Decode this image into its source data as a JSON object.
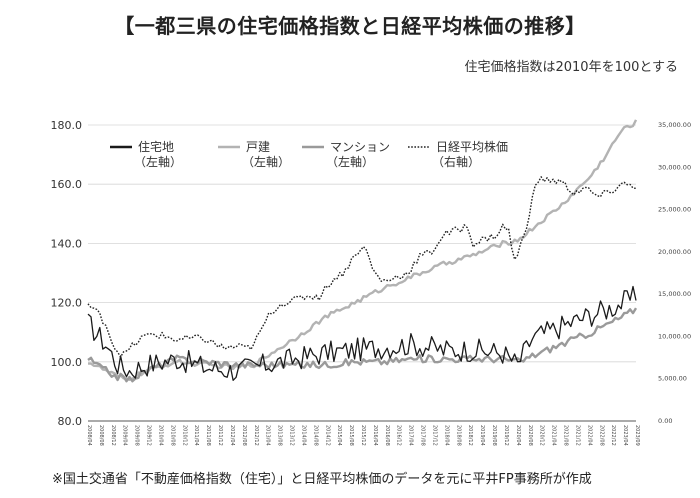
{
  "header": {
    "title": "【一都三県の住宅価格指数と日経平均株価の推移】",
    "subtitle": "住宅価格指数は2010年を100とする"
  },
  "footnote": "※国土交通省「不動産価格指数（住宅）」と日経平均株価のデータを元に平井FP事務所が作成",
  "chart_data": {
    "type": "line",
    "x_start": "2008/04",
    "x_end": "2023/09",
    "x_frequency": "monthly",
    "x_tick_labels": [
      "2008/04",
      "2008/08",
      "2008/12",
      "2009/04",
      "2009/08",
      "2009/12",
      "2010/04",
      "2010/08",
      "2010/12",
      "2011/04",
      "2011/08",
      "2011/12",
      "2012/04",
      "2012/08",
      "2012/12",
      "2013/04",
      "2013/08",
      "2013/12",
      "2014/04",
      "2014/08",
      "2014/12",
      "2015/04",
      "2015/08",
      "2015/12",
      "2016/04",
      "2016/08",
      "2016/12",
      "2017/04",
      "2017/08",
      "2017/12",
      "2018/04",
      "2018/08",
      "2018/12",
      "2019/04",
      "2019/08",
      "2019/12",
      "2020/04",
      "2020/08",
      "2020/12",
      "2021/04",
      "2021/08",
      "2021/12",
      "2022/04",
      "2022/08",
      "2022/12",
      "2023/04",
      "2023/09"
    ],
    "y_left": {
      "ticks": [
        "80.0",
        "100.0",
        "120.0",
        "140.0",
        "160.0",
        "180.0"
      ],
      "ylim": [
        80,
        180
      ]
    },
    "y_right": {
      "ticks": [
        "0.00",
        "5,000.00",
        "10,000.00",
        "15,000.00",
        "20,000.00",
        "25,000.00",
        "30,000.00",
        "35,000.00"
      ],
      "ylim": [
        0,
        35000
      ]
    },
    "grid": true,
    "legend_position": "top-left",
    "series": [
      {
        "name": "住宅地",
        "sub": "（左軸）",
        "axis": "left",
        "color": "#1a1a1a",
        "style": "solid",
        "anchors": [
          [
            0,
            113
          ],
          [
            6,
            106
          ],
          [
            10,
            99
          ],
          [
            14,
            97
          ],
          [
            20,
            99
          ],
          [
            30,
            101
          ],
          [
            40,
            98
          ],
          [
            50,
            97
          ],
          [
            60,
            99
          ],
          [
            70,
            101
          ],
          [
            80,
            103
          ],
          [
            90,
            104
          ],
          [
            100,
            105
          ],
          [
            110,
            106
          ],
          [
            120,
            104
          ],
          [
            130,
            104
          ],
          [
            140,
            103
          ],
          [
            145,
            99
          ],
          [
            150,
            108
          ],
          [
            160,
            112
          ],
          [
            170,
            116
          ],
          [
            176,
            118
          ],
          [
            185,
            122
          ]
        ],
        "noise": 4.0
      },
      {
        "name": "戸建",
        "sub": "（左軸）",
        "axis": "left",
        "color": "#b3b3b3",
        "style": "solid",
        "anchors": [
          [
            0,
            100
          ],
          [
            6,
            97
          ],
          [
            10,
            95
          ],
          [
            13,
            94
          ],
          [
            20,
            97
          ],
          [
            30,
            100
          ],
          [
            40,
            99
          ],
          [
            50,
            98
          ],
          [
            56,
            99
          ],
          [
            62,
            103
          ],
          [
            70,
            108
          ],
          [
            80,
            115
          ],
          [
            90,
            120
          ],
          [
            100,
            125
          ],
          [
            110,
            129
          ],
          [
            120,
            133
          ],
          [
            130,
            136
          ],
          [
            140,
            140
          ],
          [
            145,
            141
          ],
          [
            150,
            145
          ],
          [
            160,
            153
          ],
          [
            170,
            163
          ],
          [
            175,
            170
          ],
          [
            180,
            178
          ],
          [
            185,
            181
          ]
        ],
        "noise": 0.8
      },
      {
        "name": "マンション",
        "sub": "（左軸）",
        "axis": "left",
        "color": "#9a9a9a",
        "style": "solid",
        "anchors": [
          [
            0,
            101
          ],
          [
            6,
            97
          ],
          [
            10,
            95
          ],
          [
            14,
            94
          ],
          [
            22,
            98
          ],
          [
            30,
            101
          ],
          [
            40,
            100
          ],
          [
            50,
            99
          ],
          [
            60,
            99
          ],
          [
            70,
            99
          ],
          [
            80,
            99
          ],
          [
            90,
            100
          ],
          [
            100,
            100
          ],
          [
            110,
            101
          ],
          [
            120,
            101
          ],
          [
            130,
            101
          ],
          [
            140,
            101
          ],
          [
            146,
            100
          ],
          [
            150,
            102
          ],
          [
            160,
            106
          ],
          [
            170,
            110
          ],
          [
            180,
            115
          ],
          [
            185,
            118
          ]
        ],
        "noise": 1.2
      },
      {
        "name": "日経平均株価",
        "sub": "（右軸）",
        "axis": "right",
        "color": "#222222",
        "style": "dotted",
        "anchors": [
          [
            0,
            13800
          ],
          [
            4,
            12500
          ],
          [
            6,
            11500
          ],
          [
            8,
            9500
          ],
          [
            10,
            8200
          ],
          [
            12,
            7800
          ],
          [
            14,
            8500
          ],
          [
            18,
            9800
          ],
          [
            22,
            10300
          ],
          [
            26,
            10000
          ],
          [
            30,
            9600
          ],
          [
            36,
            9800
          ],
          [
            40,
            9600
          ],
          [
            46,
            8600
          ],
          [
            50,
            8800
          ],
          [
            54,
            8600
          ],
          [
            56,
            9000
          ],
          [
            58,
            10400
          ],
          [
            60,
            11800
          ],
          [
            62,
            13000
          ],
          [
            66,
            14000
          ],
          [
            70,
            14300
          ],
          [
            74,
            14800
          ],
          [
            78,
            14700
          ],
          [
            82,
            16500
          ],
          [
            86,
            17500
          ],
          [
            90,
            19500
          ],
          [
            92,
            20500
          ],
          [
            94,
            20200
          ],
          [
            96,
            18000
          ],
          [
            98,
            17000
          ],
          [
            100,
            16500
          ],
          [
            104,
            17000
          ],
          [
            108,
            17500
          ],
          [
            112,
            19500
          ],
          [
            116,
            20000
          ],
          [
            120,
            22000
          ],
          [
            124,
            22500
          ],
          [
            128,
            23000
          ],
          [
            130,
            21000
          ],
          [
            134,
            21500
          ],
          [
            138,
            22000
          ],
          [
            140,
            23000
          ],
          [
            142,
            22500
          ],
          [
            144,
            19000
          ],
          [
            145,
            19500
          ],
          [
            148,
            23000
          ],
          [
            150,
            26500
          ],
          [
            152,
            28500
          ],
          [
            156,
            28500
          ],
          [
            160,
            28200
          ],
          [
            164,
            27000
          ],
          [
            168,
            27500
          ],
          [
            172,
            26500
          ],
          [
            176,
            27000
          ],
          [
            180,
            28000
          ],
          [
            185,
            27800
          ]
        ],
        "noise": 450
      }
    ]
  }
}
